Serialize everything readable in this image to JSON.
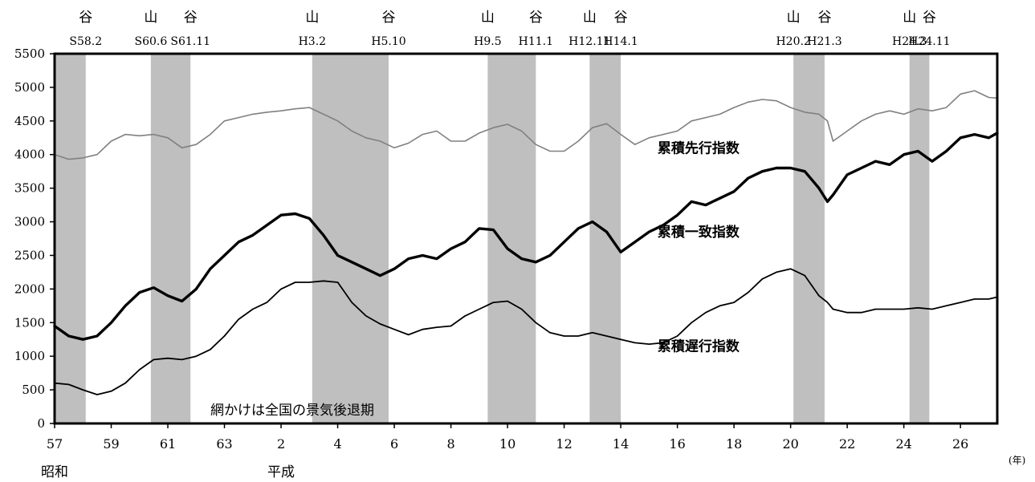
{
  "chart_data": {
    "type": "line",
    "ylim": [
      0,
      5500
    ],
    "yticks": [
      0,
      500,
      1000,
      1500,
      2000,
      2500,
      3000,
      3500,
      4000,
      4500,
      5000,
      5500
    ],
    "xlim": [
      1982,
      2015.3
    ],
    "xtick_years": [
      1982,
      1984,
      1986,
      1988,
      1990,
      1992,
      1994,
      1996,
      1998,
      2000,
      2002,
      2004,
      2006,
      2008,
      2010,
      2012,
      2014
    ],
    "xtick_labels": [
      "57",
      "59",
      "61",
      "63",
      "2",
      "4",
      "6",
      "8",
      "10",
      "12",
      "14",
      "16",
      "18",
      "20",
      "22",
      "24",
      "26"
    ],
    "x_unit": "(年)",
    "eras": [
      {
        "label": "昭和",
        "year": 1982
      },
      {
        "label": "平成",
        "year": 1990
      }
    ],
    "recessions": [
      {
        "start": 1982.0,
        "end": 1983.1
      },
      {
        "start": 1985.4,
        "end": 1986.8
      },
      {
        "start": 1991.1,
        "end": 1993.8
      },
      {
        "start": 1997.3,
        "end": 1999.0
      },
      {
        "start": 2000.9,
        "end": 2002.0
      },
      {
        "start": 2008.1,
        "end": 2009.2
      },
      {
        "start": 2012.2,
        "end": 2012.9
      }
    ],
    "turning_points": [
      {
        "type": "谷",
        "date": "S58.2",
        "year": 1983.1
      },
      {
        "type": "山",
        "date": "S60.6",
        "year": 1985.4
      },
      {
        "type": "谷",
        "date": "S61.11",
        "year": 1986.8
      },
      {
        "type": "山",
        "date": "H3.2",
        "year": 1991.1
      },
      {
        "type": "谷",
        "date": "H5.10",
        "year": 1993.8
      },
      {
        "type": "山",
        "date": "H9.5",
        "year": 1997.3
      },
      {
        "type": "谷",
        "date": "H11.1",
        "year": 1999.0
      },
      {
        "type": "山",
        "date": "H12.11",
        "year": 2000.9
      },
      {
        "type": "谷",
        "date": "H14.1",
        "year": 2002.0
      },
      {
        "type": "山",
        "date": "H20.2",
        "year": 2008.1
      },
      {
        "type": "谷",
        "date": "H21.3",
        "year": 2009.2
      },
      {
        "type": "山",
        "date": "H24.3",
        "year": 2012.2
      },
      {
        "type": "谷",
        "date": "H24.11",
        "year": 2012.9
      }
    ],
    "note": "網かけは全国の景気後退期",
    "series": [
      {
        "name": "累積先行指数",
        "color": "#808080",
        "stroke": "thin",
        "x": [
          1982.0,
          1982.5,
          1983.0,
          1983.5,
          1984.0,
          1984.5,
          1985.0,
          1985.5,
          1986.0,
          1986.5,
          1987.0,
          1987.5,
          1988.0,
          1988.5,
          1989.0,
          1989.5,
          1990.0,
          1990.5,
          1991.0,
          1991.5,
          1992.0,
          1992.5,
          1993.0,
          1993.5,
          1994.0,
          1994.5,
          1995.0,
          1995.5,
          1996.0,
          1996.5,
          1997.0,
          1997.5,
          1998.0,
          1998.5,
          1999.0,
          1999.5,
          2000.0,
          2000.5,
          2001.0,
          2001.5,
          2002.0,
          2002.5,
          2003.0,
          2003.5,
          2004.0,
          2004.5,
          2005.0,
          2005.5,
          2006.0,
          2006.5,
          2007.0,
          2007.5,
          2008.0,
          2008.5,
          2009.0,
          2009.3,
          2009.5,
          2010.0,
          2010.5,
          2011.0,
          2011.5,
          2012.0,
          2012.5,
          2013.0,
          2013.5,
          2014.0,
          2014.5,
          2015.0,
          2015.3
        ],
        "values": [
          4000,
          3930,
          3950,
          4000,
          4200,
          4300,
          4280,
          4300,
          4250,
          4100,
          4150,
          4300,
          4500,
          4550,
          4600,
          4630,
          4650,
          4680,
          4700,
          4600,
          4500,
          4350,
          4250,
          4200,
          4100,
          4170,
          4300,
          4350,
          4200,
          4200,
          4320,
          4400,
          4450,
          4350,
          4150,
          4050,
          4050,
          4200,
          4400,
          4460,
          4300,
          4150,
          4250,
          4300,
          4350,
          4500,
          4550,
          4600,
          4700,
          4780,
          4820,
          4800,
          4700,
          4630,
          4600,
          4500,
          4200,
          4350,
          4500,
          4600,
          4650,
          4600,
          4680,
          4650,
          4700,
          4900,
          4950,
          4850,
          4840
        ]
      },
      {
        "name": "累積一致指数",
        "color": "#000000",
        "stroke": "thick",
        "x": [
          1982.0,
          1982.5,
          1983.0,
          1983.5,
          1984.0,
          1984.5,
          1985.0,
          1985.5,
          1986.0,
          1986.5,
          1987.0,
          1987.5,
          1988.0,
          1988.5,
          1989.0,
          1989.5,
          1990.0,
          1990.5,
          1991.0,
          1991.5,
          1992.0,
          1992.5,
          1993.0,
          1993.5,
          1994.0,
          1994.5,
          1995.0,
          1995.5,
          1996.0,
          1996.5,
          1997.0,
          1997.5,
          1998.0,
          1998.5,
          1999.0,
          1999.5,
          2000.0,
          2000.5,
          2001.0,
          2001.5,
          2002.0,
          2002.5,
          2003.0,
          2003.5,
          2004.0,
          2004.5,
          2005.0,
          2005.5,
          2006.0,
          2006.5,
          2007.0,
          2007.5,
          2008.0,
          2008.5,
          2009.0,
          2009.3,
          2009.5,
          2010.0,
          2010.5,
          2011.0,
          2011.5,
          2012.0,
          2012.5,
          2013.0,
          2013.5,
          2014.0,
          2014.5,
          2015.0,
          2015.3
        ],
        "values": [
          1450,
          1300,
          1250,
          1300,
          1500,
          1750,
          1950,
          2020,
          1900,
          1820,
          2000,
          2300,
          2500,
          2700,
          2800,
          2950,
          3100,
          3120,
          3050,
          2800,
          2500,
          2400,
          2300,
          2200,
          2300,
          2450,
          2500,
          2450,
          2600,
          2700,
          2900,
          2880,
          2600,
          2450,
          2400,
          2500,
          2700,
          2900,
          3000,
          2850,
          2550,
          2700,
          2850,
          2950,
          3100,
          3300,
          3250,
          3350,
          3450,
          3650,
          3750,
          3800,
          3800,
          3750,
          3500,
          3300,
          3400,
          3700,
          3800,
          3900,
          3850,
          4000,
          4050,
          3900,
          4050,
          4250,
          4300,
          4250,
          4320
        ]
      },
      {
        "name": "累積遅行指数",
        "color": "#000000",
        "stroke": "normal",
        "x": [
          1982.0,
          1982.5,
          1983.0,
          1983.5,
          1984.0,
          1984.5,
          1985.0,
          1985.5,
          1986.0,
          1986.5,
          1987.0,
          1987.5,
          1988.0,
          1988.5,
          1989.0,
          1989.5,
          1990.0,
          1990.5,
          1991.0,
          1991.5,
          1992.0,
          1992.5,
          1993.0,
          1993.5,
          1994.0,
          1994.5,
          1995.0,
          1995.5,
          1996.0,
          1996.5,
          1997.0,
          1997.5,
          1998.0,
          1998.5,
          1999.0,
          1999.5,
          2000.0,
          2000.5,
          2001.0,
          2001.5,
          2002.0,
          2002.5,
          2003.0,
          2003.5,
          2004.0,
          2004.5,
          2005.0,
          2005.5,
          2006.0,
          2006.5,
          2007.0,
          2007.5,
          2008.0,
          2008.5,
          2009.0,
          2009.3,
          2009.5,
          2010.0,
          2010.5,
          2011.0,
          2011.5,
          2012.0,
          2012.5,
          2013.0,
          2013.5,
          2014.0,
          2014.5,
          2015.0,
          2015.3
        ],
        "values": [
          600,
          580,
          500,
          430,
          480,
          600,
          800,
          950,
          970,
          950,
          1000,
          1100,
          1300,
          1550,
          1700,
          1800,
          2000,
          2100,
          2100,
          2120,
          2100,
          1800,
          1600,
          1480,
          1400,
          1320,
          1400,
          1430,
          1450,
          1600,
          1700,
          1800,
          1820,
          1700,
          1500,
          1350,
          1300,
          1300,
          1350,
          1300,
          1250,
          1200,
          1180,
          1200,
          1300,
          1500,
          1650,
          1750,
          1800,
          1950,
          2150,
          2250,
          2300,
          2200,
          1900,
          1800,
          1700,
          1650,
          1650,
          1700,
          1700,
          1700,
          1720,
          1700,
          1750,
          1800,
          1850,
          1850,
          1880
        ]
      }
    ]
  }
}
